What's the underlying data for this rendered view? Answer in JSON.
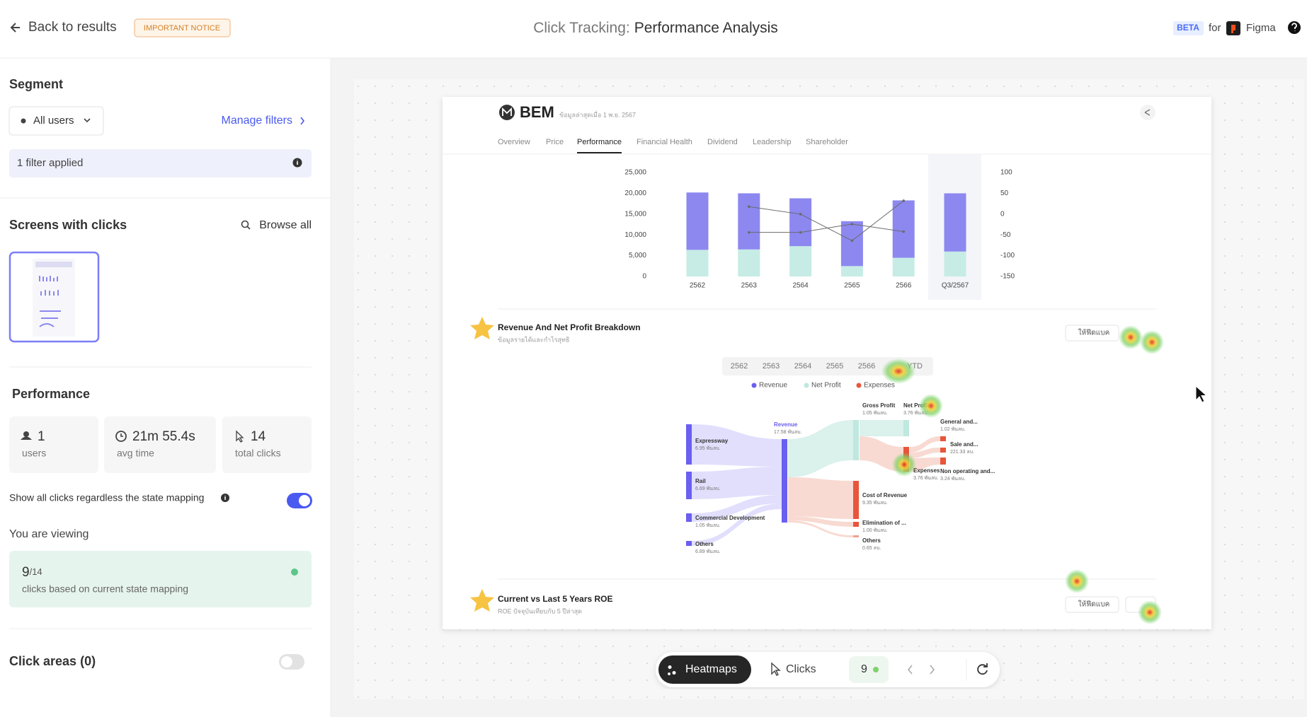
{
  "header": {
    "back": "Back to results",
    "notice": "IMPORTANT NOTICE",
    "title_prefix": "Click Tracking:",
    "title": "Performance Analysis",
    "beta": "BETA",
    "for": "for",
    "tool": "Figma"
  },
  "sidebar": {
    "segment": {
      "title": "Segment",
      "dropdown": "All users",
      "manage": "Manage filters",
      "filter": "1 filter applied"
    },
    "screens": {
      "title": "Screens with clicks",
      "browse": "Browse all"
    },
    "performance": {
      "title": "Performance",
      "stats": [
        {
          "value": "1",
          "label": "users"
        },
        {
          "value": "21m 55.4s",
          "label": "avg time"
        },
        {
          "value": "14",
          "label": "total clicks"
        }
      ],
      "toggle_label": "Show all clicks regardless the state mapping",
      "toggle_on": true
    },
    "viewing": {
      "title": "You are viewing",
      "count": "9",
      "total": "/14",
      "note": "clicks based on current state mapping"
    },
    "click_areas": {
      "title": "Click areas (0)",
      "toggle_on": false
    }
  },
  "preview": {
    "company": "BEM",
    "updated": "ข้อมูลล่าสุดเมื่อ 1 พ.ย. 2567",
    "tabs": [
      "Overview",
      "Price",
      "Performance",
      "Financial Health",
      "Dividend",
      "Leadership",
      "Shareholder"
    ],
    "active_tab": 2,
    "chart_data": {
      "type": "bar",
      "categories": [
        "2562",
        "2563",
        "2564",
        "2565",
        "2566",
        "Q3/2567"
      ],
      "series": [
        {
          "color": "#c6ece5",
          "values": [
            6400,
            6500,
            7300,
            2500,
            4500,
            6000
          ]
        },
        {
          "color": "#8c88f0",
          "values": [
            13800,
            13500,
            11500,
            10800,
            13800,
            14000
          ]
        },
        {
          "color": "#6b6b6b",
          "axis": "y2",
          "type": "line",
          "values": [
            null,
            18,
            0,
            -64,
            32,
            null
          ]
        },
        {
          "color": "#6b6b6b",
          "axis": "y2",
          "type": "line",
          "values": [
            null,
            -44,
            -44,
            -24,
            -42,
            null
          ]
        }
      ],
      "stacked": true,
      "ylim": [
        0,
        25000
      ],
      "yticks": [
        0,
        {
          "value": 5000,
          "label": "5,000"
        },
        {
          "value": 10000,
          "label": "10,000"
        },
        {
          "value": 15000,
          "label": "15,000"
        },
        {
          "value": 20000,
          "label": "20,000"
        },
        {
          "value": 25000,
          "label": "25,000"
        }
      ],
      "y2lim": [
        -150,
        100
      ],
      "y2ticks": [
        -150,
        -100,
        -50,
        0,
        50,
        100
      ],
      "grid": false
    },
    "breakdown": {
      "title": "Revenue And Net Profit Breakdown",
      "subtitle": "ข้อมูลรายได้และกำไรสุทธิ",
      "feedback": "ให้ฟีดแบค",
      "years": [
        "2562",
        "2563",
        "2564",
        "2565",
        "2566",
        "YTD"
      ],
      "legend": [
        {
          "name": "Revenue",
          "color": "#6a5ff0"
        },
        {
          "name": "Net Profit",
          "color": "#bfe8df"
        },
        {
          "name": "Expenses",
          "color": "#e8553a"
        }
      ],
      "nodes": [
        {
          "label": "Expressway",
          "value": "6.95 พันลบ."
        },
        {
          "label": "Rail",
          "value": "6.69 พันลบ."
        },
        {
          "label": "Commercial Development",
          "value": "1.05 พันลบ."
        },
        {
          "label": "Others",
          "value": "6.89 พันลบ."
        },
        {
          "label": "Revenue",
          "value": "17.58 พันลบ."
        },
        {
          "label": "Gross Profit",
          "value": "1.05 พันลบ."
        },
        {
          "label": "Cost of Revenue",
          "value": "9.35 พันลบ."
        },
        {
          "label": "Elimination of ...",
          "value": "1.00 พันลบ."
        },
        {
          "label": "Others",
          "value": "0.65 ลบ."
        },
        {
          "label": "Net Profit",
          "value": "3.76 พันลบ."
        },
        {
          "label": "Expenses",
          "value": "3.76 พันลบ."
        },
        {
          "label": "General and...",
          "value": "1.02 พันลบ."
        },
        {
          "label": "Sale and...",
          "value": "221.33 ลบ."
        },
        {
          "label": "Non operating and...",
          "value": "3.24 พันลบ."
        }
      ]
    },
    "roe": {
      "title": "Current vs Last 5 Years ROE",
      "subtitle": "ROE ปัจจุบันเทียบกับ 5 ปีล่าสุด",
      "feedback": "ให้ฟีดแบค"
    }
  },
  "toolbar": {
    "heatmaps": "Heatmaps",
    "clicks": "Clicks",
    "count": "9"
  }
}
